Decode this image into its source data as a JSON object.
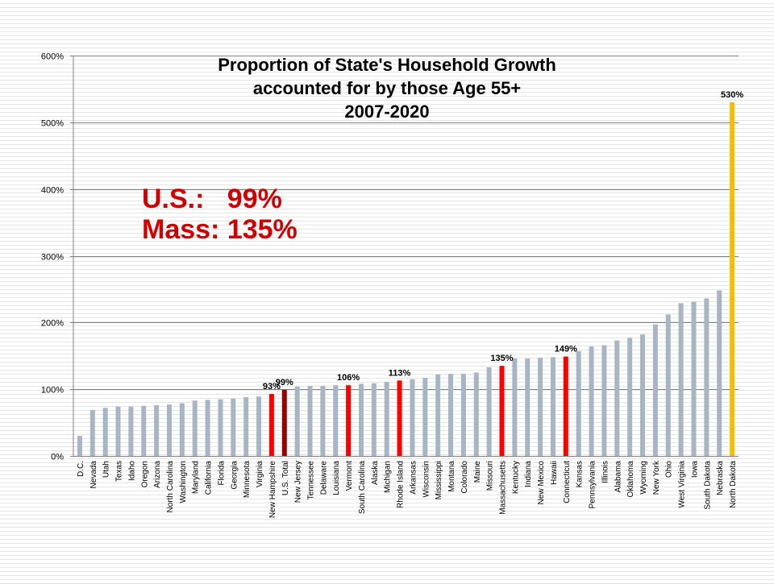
{
  "chart_data": {
    "type": "bar",
    "title_lines": [
      "Proportion of State's Household Growth",
      "accounted for by those Age 55+",
      "2007-2020"
    ],
    "callout_lines": [
      "U.S.:   99%",
      "Mass: 135%"
    ],
    "xlabel": "",
    "ylabel": "",
    "ylim": [
      0,
      600
    ],
    "y_ticks": [
      0,
      100,
      200,
      300,
      400,
      500,
      600
    ],
    "y_tick_labels": [
      "0%",
      "100%",
      "200%",
      "300%",
      "400%",
      "500%",
      "600%"
    ],
    "grid": true,
    "legend": "none",
    "categories": [
      "D.C.",
      "Nevada",
      "Utah",
      "Texas",
      "Idaho",
      "Oregon",
      "Arizona",
      "North Carolina",
      "Washington",
      "Maryland",
      "California",
      "Florida",
      "Georgia",
      "Minnesota",
      "Virginia",
      "New Hampshire",
      "U.S. Total",
      "New Jersey",
      "Tennessee",
      "Delaware",
      "Louisiana",
      "Vermont",
      "South Carolina",
      "Alaska",
      "Michigan",
      "Rhode Island",
      "Arkansas",
      "Wisconsin",
      "Mississippi",
      "Montana",
      "Colorado",
      "Maine",
      "Missouri",
      "Massachusetts",
      "Kentucky",
      "Indiana",
      "New Mexico",
      "Hawaii",
      "Connecticut",
      "Kansas",
      "Pennsylvania",
      "Illinois",
      "Alabama",
      "Oklahoma",
      "Wyoming",
      "New York",
      "Ohio",
      "West Virginia",
      "Iowa",
      "South Dakota",
      "Nebraska",
      "North Dakota"
    ],
    "values": [
      30,
      69,
      72,
      74,
      74,
      75,
      76,
      77,
      79,
      83,
      84,
      85,
      86,
      88,
      89,
      93,
      99,
      104,
      105,
      105,
      106,
      106,
      108,
      109,
      111,
      113,
      115,
      117,
      122,
      123,
      123,
      125,
      133,
      135,
      146,
      146,
      147,
      148,
      149,
      157,
      164,
      166,
      173,
      177,
      182,
      197,
      212,
      229,
      231,
      236,
      248,
      530
    ],
    "bar_colors": [
      "#a8b5c5",
      "#a8b5c5",
      "#a8b5c5",
      "#a8b5c5",
      "#a8b5c5",
      "#a8b5c5",
      "#a8b5c5",
      "#a8b5c5",
      "#a8b5c5",
      "#a8b5c5",
      "#a8b5c5",
      "#a8b5c5",
      "#a8b5c5",
      "#a8b5c5",
      "#a8b5c5",
      "#ff0000",
      "#990000",
      "#a8b5c5",
      "#a8b5c5",
      "#a8b5c5",
      "#a8b5c5",
      "#ff0000",
      "#a8b5c5",
      "#a8b5c5",
      "#a8b5c5",
      "#ff0000",
      "#a8b5c5",
      "#a8b5c5",
      "#a8b5c5",
      "#a8b5c5",
      "#a8b5c5",
      "#a8b5c5",
      "#a8b5c5",
      "#ff0000",
      "#a8b5c5",
      "#a8b5c5",
      "#a8b5c5",
      "#a8b5c5",
      "#ff0000",
      "#a8b5c5",
      "#a8b5c5",
      "#a8b5c5",
      "#a8b5c5",
      "#a8b5c5",
      "#a8b5c5",
      "#a8b5c5",
      "#a8b5c5",
      "#a8b5c5",
      "#a8b5c5",
      "#a8b5c5",
      "#a8b5c5",
      "#f5bf00"
    ],
    "data_labels": [
      {
        "category": "New Hampshire",
        "text": "93%"
      },
      {
        "category": "U.S. Total",
        "text": "99%"
      },
      {
        "category": "Vermont",
        "text": "106%"
      },
      {
        "category": "Rhode Island",
        "text": "113%"
      },
      {
        "category": "Massachusetts",
        "text": "135%"
      },
      {
        "category": "Connecticut",
        "text": "149%"
      },
      {
        "category": "North Dakota",
        "text": "530%"
      }
    ]
  },
  "colors": {
    "title": "#000000",
    "callout": "#d00000",
    "axis_line": "#808080",
    "gridline": "#808080",
    "tick_label": "#000000"
  }
}
